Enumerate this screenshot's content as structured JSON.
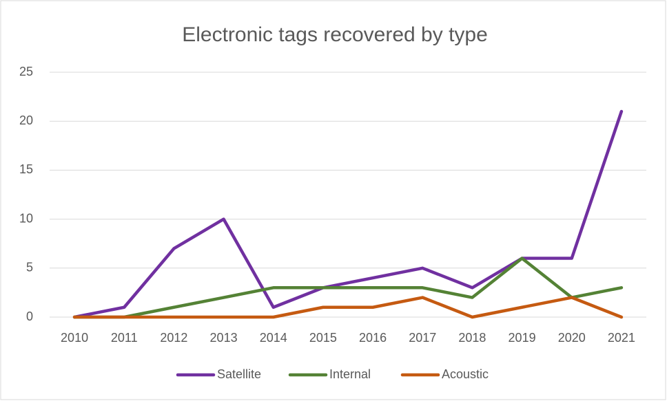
{
  "chart_data": {
    "type": "line",
    "title": "Electronic tags recovered by type",
    "categories": [
      "2010",
      "2011",
      "2012",
      "2013",
      "2014",
      "2015",
      "2016",
      "2017",
      "2018",
      "2019",
      "2020",
      "2021"
    ],
    "series": [
      {
        "name": "Satellite",
        "color": "#7030a0",
        "values": [
          0,
          1,
          7,
          10,
          1,
          3,
          4,
          5,
          3,
          6,
          6,
          21
        ]
      },
      {
        "name": "Internal",
        "color": "#548235",
        "values": [
          0,
          0,
          1,
          2,
          3,
          3,
          3,
          3,
          2,
          6,
          2,
          3
        ]
      },
      {
        "name": "Acoustic",
        "color": "#c55a11",
        "values": [
          0,
          0,
          0,
          0,
          0,
          1,
          1,
          2,
          0,
          1,
          2,
          0
        ]
      }
    ],
    "ylim": [
      0,
      25
    ],
    "yticks": [
      0,
      5,
      10,
      15,
      20,
      25
    ],
    "grid": true,
    "legend": "bottom"
  }
}
